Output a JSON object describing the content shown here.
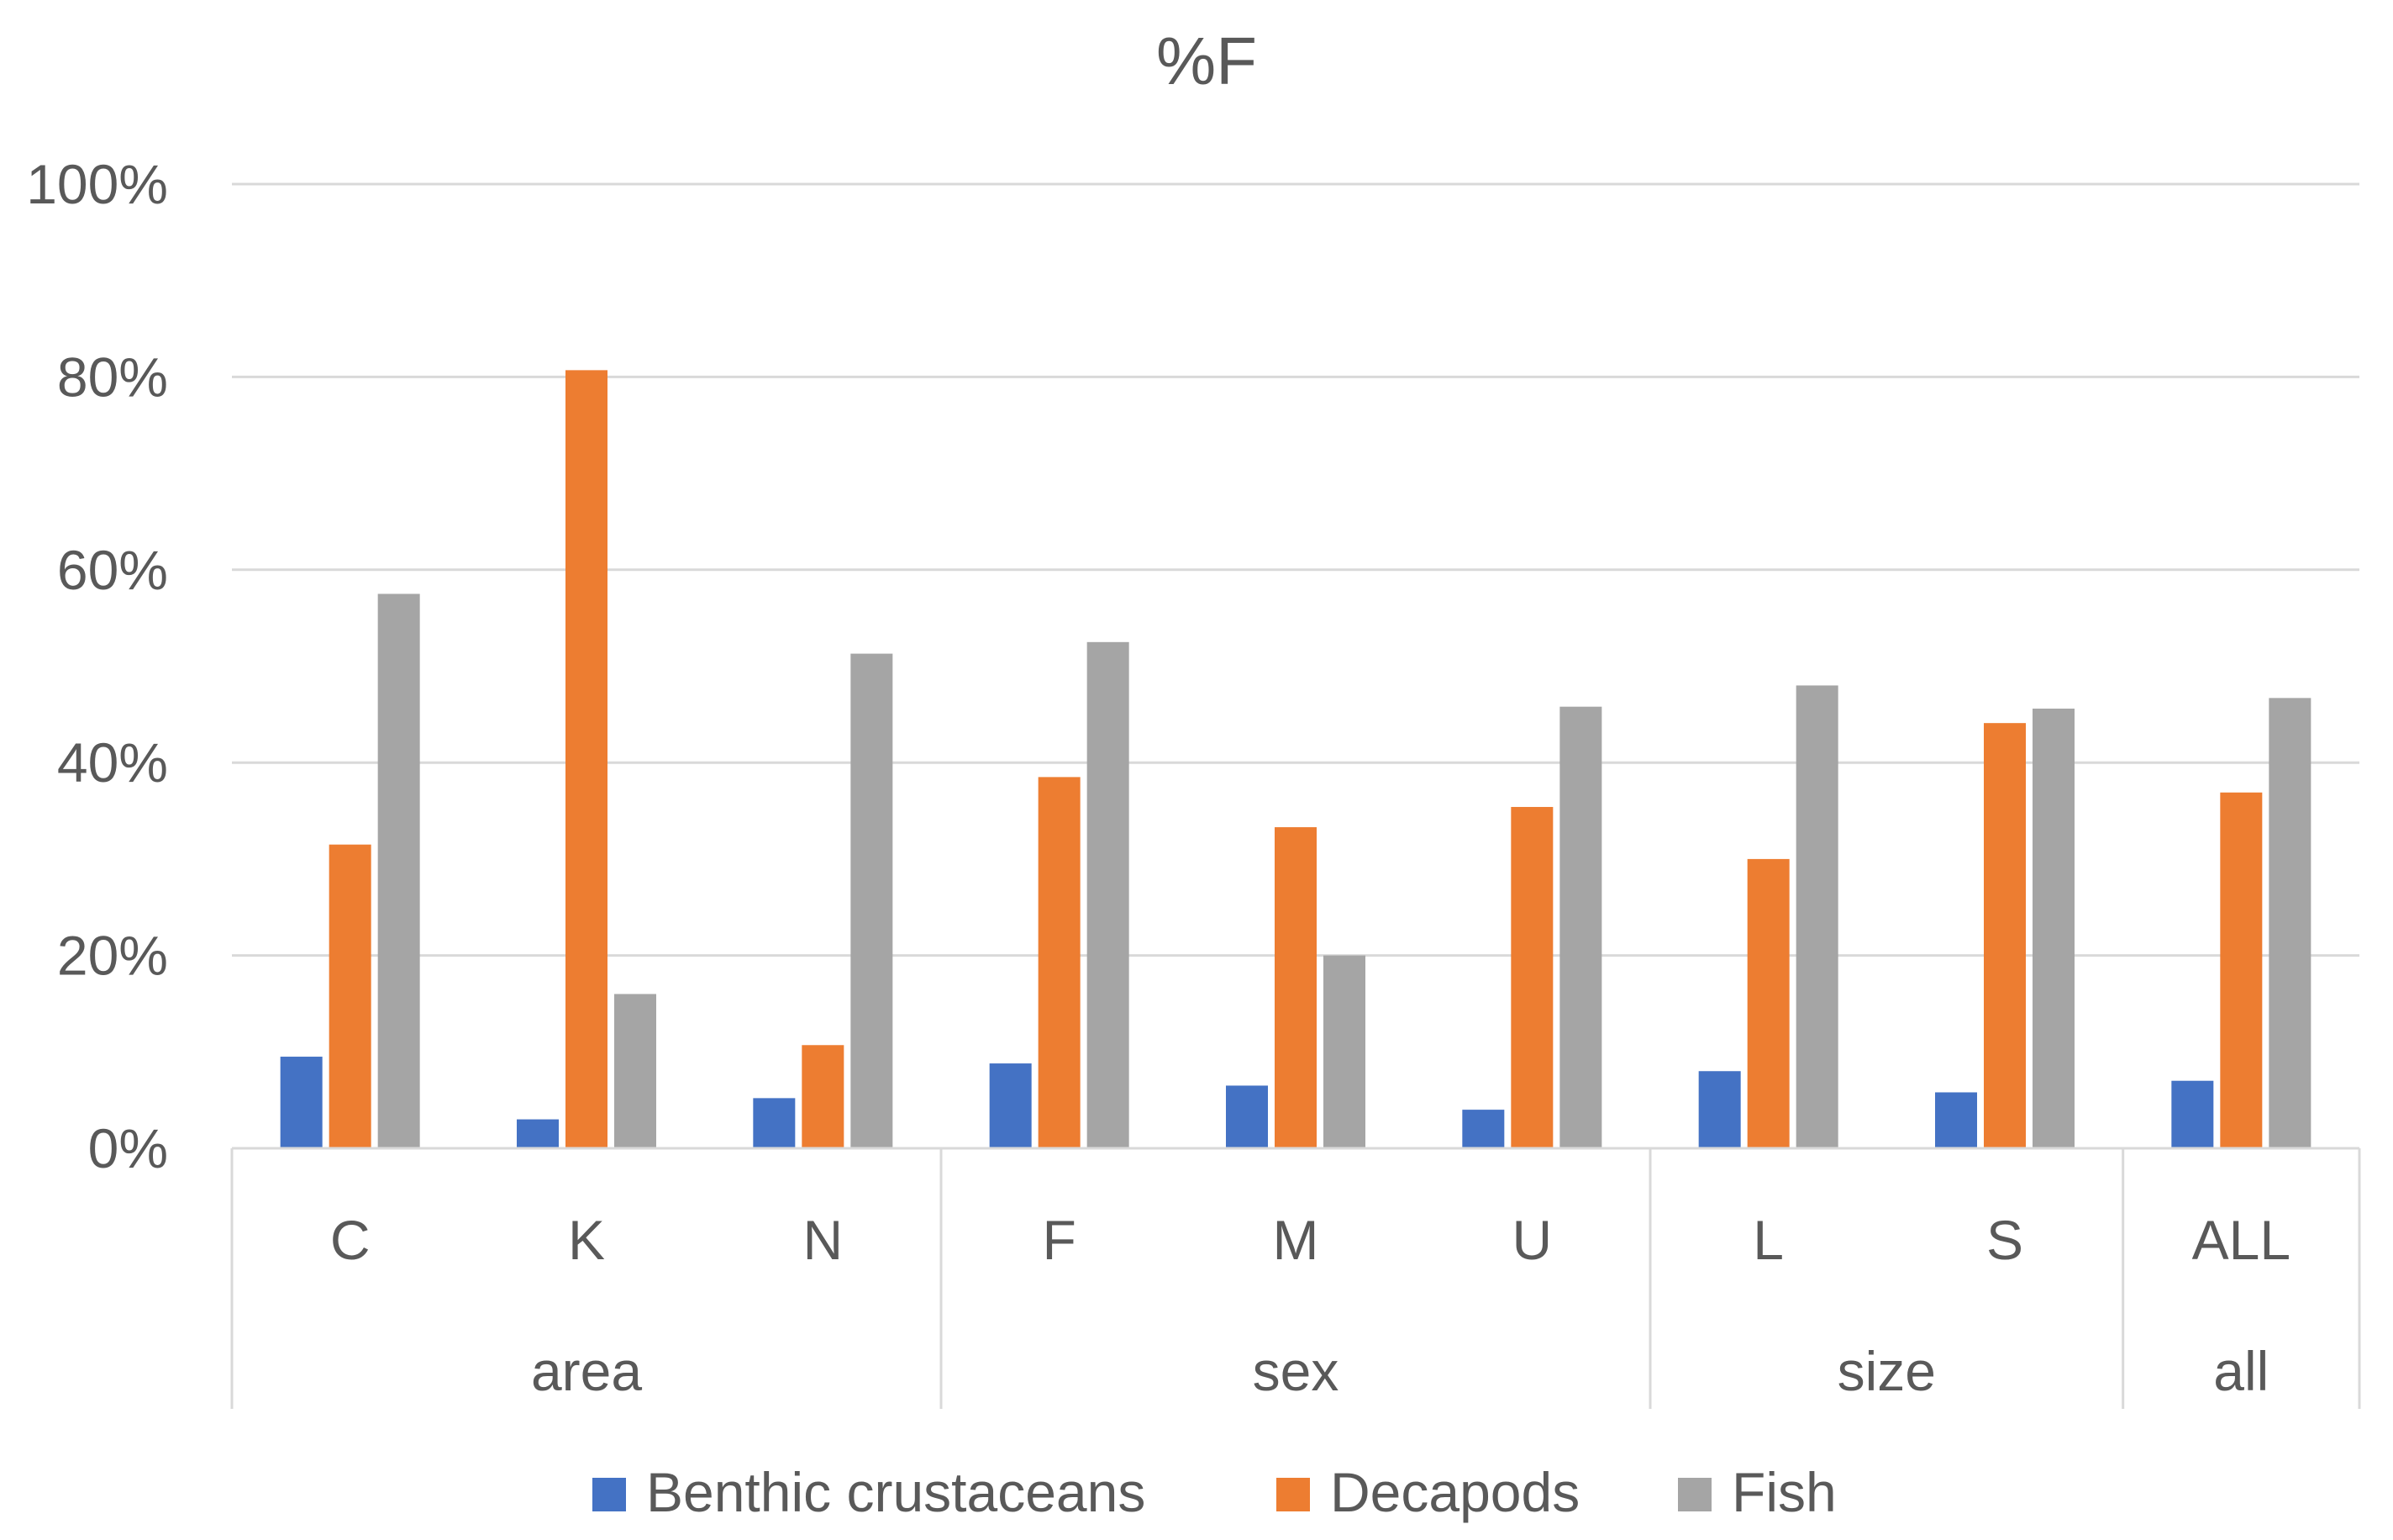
{
  "chart_data": {
    "type": "bar",
    "title": "%F",
    "xlabel": "",
    "ylabel": "",
    "ylim": [
      0,
      100
    ],
    "yticks": [
      "0%",
      "20%",
      "40%",
      "60%",
      "80%",
      "100%"
    ],
    "ytick_values": [
      0,
      20,
      40,
      60,
      80,
      100
    ],
    "grid": true,
    "legend_position": "bottom",
    "groups": [
      {
        "name": "area",
        "categories": [
          "C",
          "K",
          "N"
        ]
      },
      {
        "name": "sex",
        "categories": [
          "F",
          "M",
          "U"
        ]
      },
      {
        "name": "size",
        "categories": [
          "L",
          "S"
        ]
      },
      {
        "name": "all",
        "categories": [
          "ALL"
        ]
      }
    ],
    "categories": [
      "C",
      "K",
      "N",
      "F",
      "M",
      "U",
      "L",
      "S",
      "ALL"
    ],
    "series": [
      {
        "name": "Benthic crustaceans",
        "color": "#4472C4",
        "values": [
          9.5,
          3.0,
          5.2,
          8.8,
          6.5,
          4.0,
          8.0,
          5.8,
          7.0
        ]
      },
      {
        "name": "Decapods",
        "color": "#ED7D31",
        "values": [
          31.5,
          80.7,
          10.7,
          38.5,
          33.3,
          35.4,
          30.0,
          44.1,
          36.9
        ]
      },
      {
        "name": "Fish",
        "color": "#A5A5A5",
        "values": [
          57.5,
          16.0,
          51.3,
          52.5,
          20.0,
          45.8,
          48.0,
          45.6,
          46.7
        ]
      }
    ]
  }
}
